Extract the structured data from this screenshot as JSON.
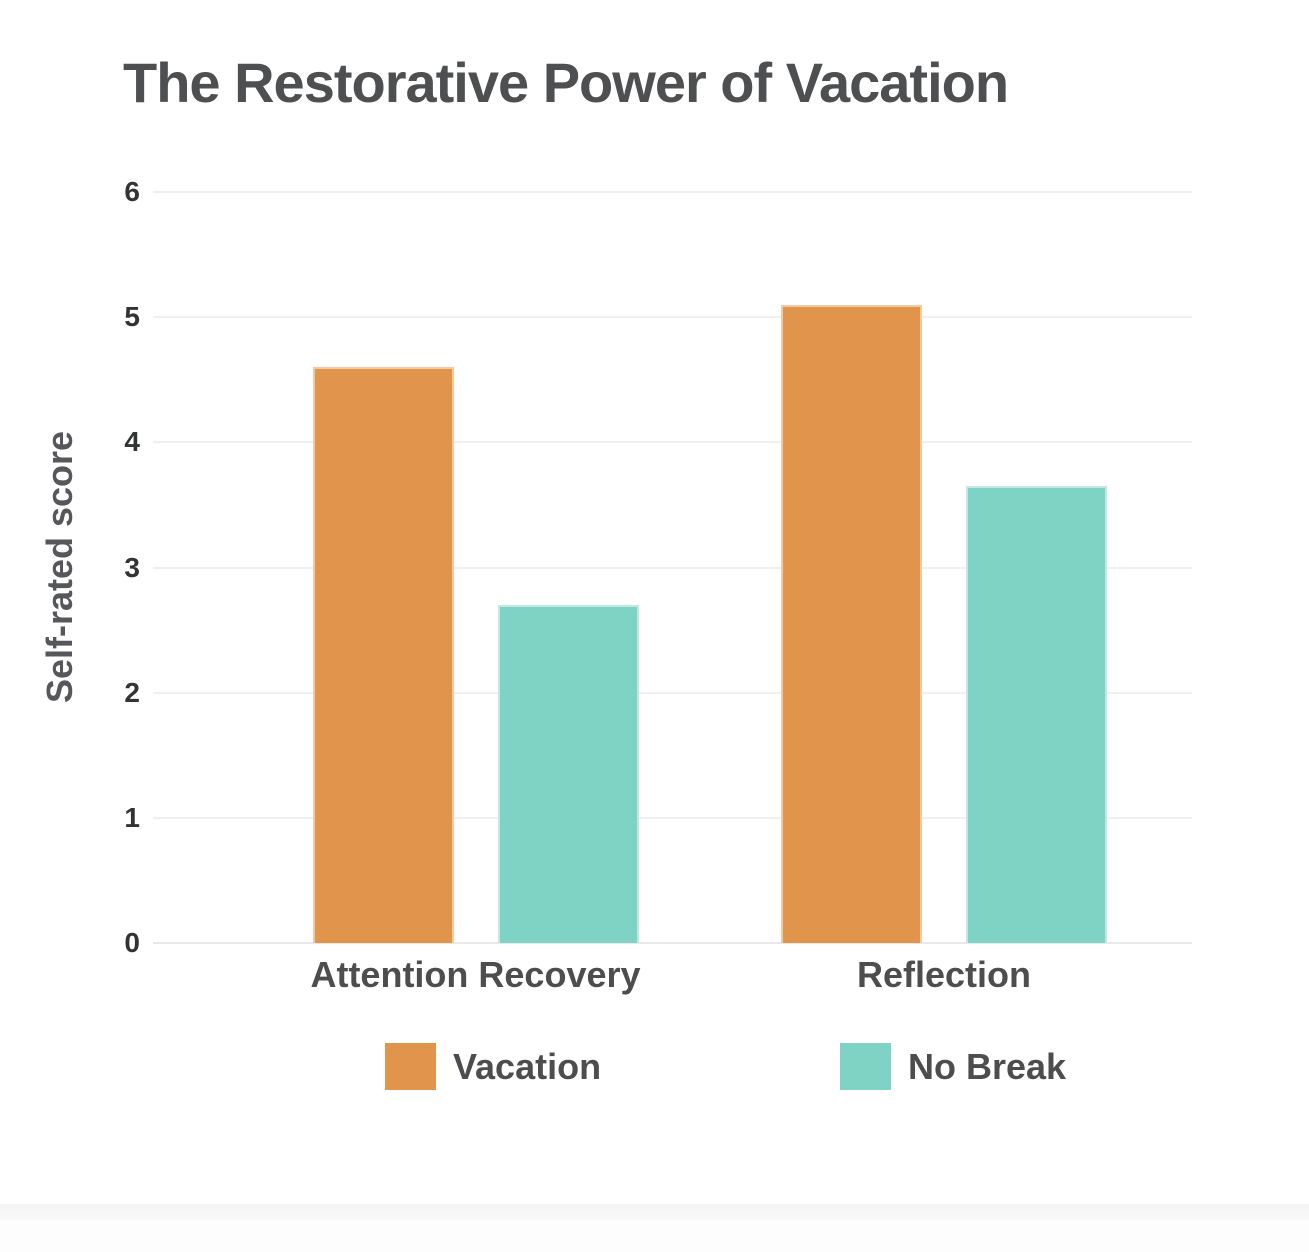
{
  "page": {
    "background": "#FFFFFF"
  },
  "chart_data": {
    "type": "bar",
    "title": "The Restorative Power of Vacation",
    "xlabel": "",
    "ylabel": "Self-rated score",
    "categories": [
      "Attention Recovery",
      "Reflection"
    ],
    "series": [
      {
        "name": "Vacation",
        "color": "#E0944C",
        "values": [
          4.6,
          5.1
        ]
      },
      {
        "name": "No Break",
        "color": "#7FD3C4",
        "values": [
          2.7,
          3.65
        ]
      }
    ],
    "ylim": [
      0,
      6
    ],
    "yticks": [
      0,
      1,
      2,
      3,
      4,
      5,
      6
    ],
    "grid": "horizontal gridlines on",
    "legend_position": "bottom"
  },
  "colors": {
    "title_text": "#4D4F51",
    "category_label_text": "#4D4D4D",
    "tick_text": "#323335",
    "axis_title_text": "#56575A",
    "gridline": "#F0F0F0",
    "baseline": "#E9E9E9",
    "bottom_strip": "#F5F5F6"
  }
}
